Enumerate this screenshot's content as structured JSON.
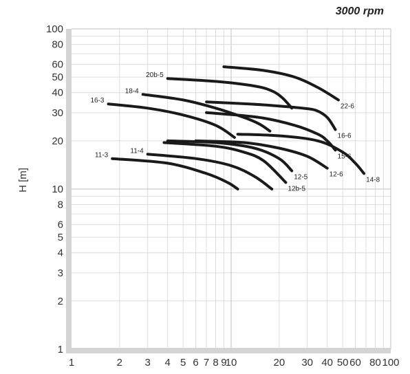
{
  "header": {
    "speed_label": "3000 rpm"
  },
  "chart_data": {
    "type": "line",
    "title": "",
    "xlabel": "",
    "ylabel": "H [m]",
    "xscale": "log",
    "yscale": "log",
    "xlim": [
      1,
      100
    ],
    "ylim": [
      1,
      100
    ],
    "grid": true,
    "x_ticks": [
      "1",
      "2",
      "3",
      "4",
      "5",
      "6",
      "7",
      "8",
      "9",
      "10",
      "20",
      "30",
      "40",
      "50",
      "60",
      "80",
      "100"
    ],
    "x_tick_values": [
      1,
      2,
      3,
      4,
      5,
      6,
      7,
      8,
      9,
      10,
      20,
      30,
      40,
      50,
      60,
      80,
      100
    ],
    "y_ticks": [
      "1",
      "2",
      "3",
      "4",
      "5",
      "6",
      "8",
      "10",
      "20",
      "30",
      "40",
      "50",
      "60",
      "80",
      "100"
    ],
    "y_tick_values": [
      1,
      2,
      3,
      4,
      5,
      6,
      8,
      10,
      20,
      30,
      40,
      50,
      60,
      80,
      100
    ],
    "curve_color": "#1a1a1a",
    "series": [
      {
        "name": "22-6",
        "x": [
          9,
          16,
          25,
          35,
          47
        ],
        "y": [
          58,
          55,
          50,
          43,
          36
        ]
      },
      {
        "name": "20b-5",
        "x": [
          4,
          8,
          14,
          18,
          21,
          24
        ],
        "y": [
          49,
          47,
          44,
          41,
          37,
          32
        ]
      },
      {
        "name": "18-4",
        "x": [
          2.8,
          5,
          8,
          12,
          15,
          17.5
        ],
        "y": [
          39,
          36,
          32,
          28,
          25.5,
          23
        ]
      },
      {
        "name": "16-3",
        "x": [
          1.7,
          3,
          5,
          8,
          10.5
        ],
        "y": [
          34,
          32,
          29,
          25,
          21
        ]
      },
      {
        "name": "16-6",
        "x": [
          7,
          13,
          20,
          28,
          34,
          40,
          45
        ],
        "y": [
          35,
          34,
          33,
          32,
          31,
          28,
          23.5
        ]
      },
      {
        "name": "15-6",
        "x": [
          7,
          15,
          25,
          35,
          40,
          45
        ],
        "y": [
          30,
          28,
          25,
          22,
          20,
          17.5
        ]
      },
      {
        "name": "14-8",
        "x": [
          11,
          20,
          35,
          50,
          60,
          68
        ],
        "y": [
          22,
          21.5,
          20,
          17,
          14.5,
          12.5
        ]
      },
      {
        "name": "12-6",
        "x": [
          6,
          12,
          20,
          30,
          40
        ],
        "y": [
          20,
          19.5,
          18,
          16,
          13.5
        ]
      },
      {
        "name": "12-5",
        "x": [
          4,
          8,
          14,
          20,
          24
        ],
        "y": [
          20,
          19.5,
          18,
          15.5,
          13
        ]
      },
      {
        "name": "12b-5",
        "x": [
          3.8,
          8,
          12,
          16,
          22
        ],
        "y": [
          19.5,
          18.5,
          17,
          15,
          11
        ]
      },
      {
        "name": "11-4",
        "x": [
          3,
          6,
          10,
          14,
          18
        ],
        "y": [
          16.5,
          15.5,
          14,
          12,
          10
        ]
      },
      {
        "name": "11-3",
        "x": [
          1.8,
          4,
          7,
          9.5,
          11
        ],
        "y": [
          15.5,
          14.5,
          12.5,
          11,
          10
        ]
      }
    ]
  }
}
